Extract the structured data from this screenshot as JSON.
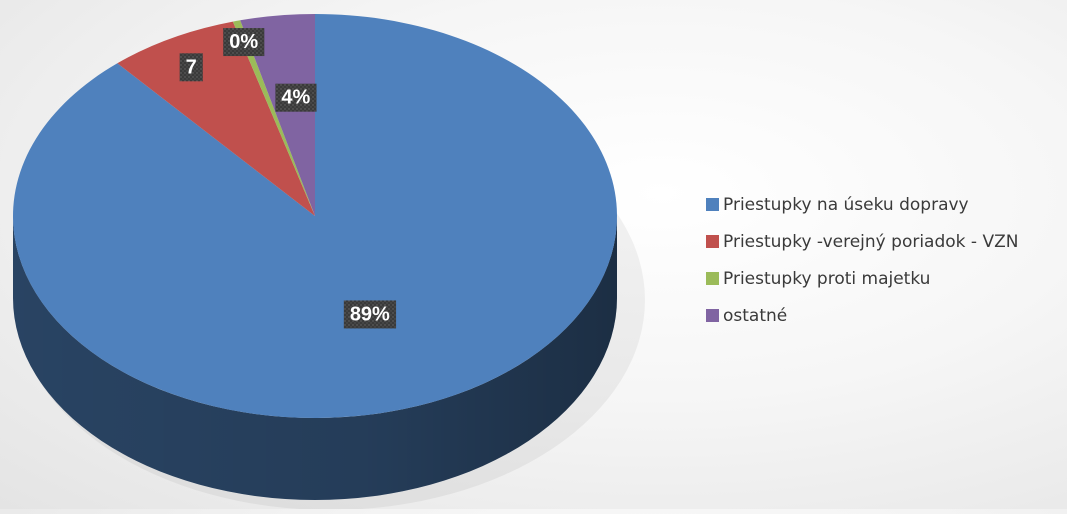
{
  "chart_data": {
    "type": "pie",
    "title": "",
    "categories": [
      "Priestupky na úseku dopravy",
      "Priestupky -verejný poriadok - VZN",
      "Priestupky proti majetku",
      "ostatné"
    ],
    "values": [
      89,
      7,
      0,
      4
    ],
    "data_labels": [
      "89%",
      "7",
      "0%",
      "4%"
    ],
    "colors": [
      "#4f81bd",
      "#c0504d",
      "#9bbb59",
      "#8064a2"
    ],
    "legend": "right",
    "style": "3d"
  }
}
